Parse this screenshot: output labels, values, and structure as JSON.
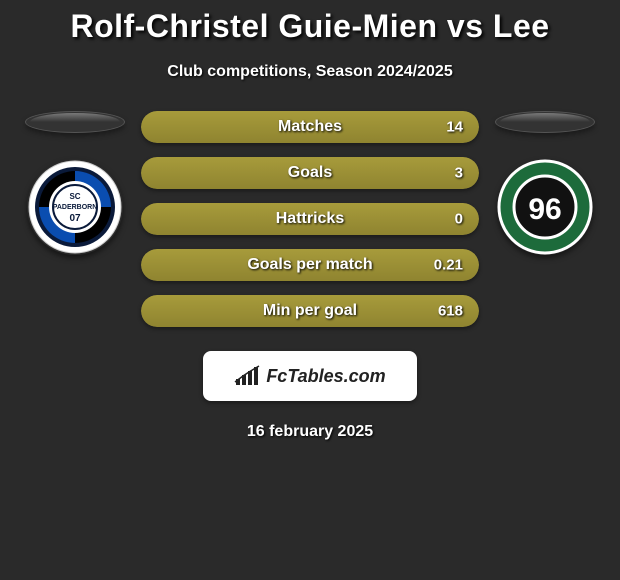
{
  "title": "Rolf-Christel Guie-Mien vs Lee",
  "subtitle": "Club competitions, Season 2024/2025",
  "date": "16 february 2025",
  "brand": "FcTables.com",
  "colors": {
    "olive": "#a79b3b",
    "oliveDark": "#8f8430",
    "barTrack": "#333333",
    "white": "#ffffff"
  },
  "leftBadge": {
    "bg": "#ffffff",
    "line1": "SC",
    "line2": "PADERBORN",
    "line3": "07"
  },
  "rightBadge": {
    "outer": "#1d6b3b",
    "inner": "#111111",
    "text": "96"
  },
  "stats": [
    {
      "label": "Matches",
      "value": "14",
      "fillPct": 100
    },
    {
      "label": "Goals",
      "value": "3",
      "fillPct": 100
    },
    {
      "label": "Hattricks",
      "value": "0",
      "fillPct": 100
    },
    {
      "label": "Goals per match",
      "value": "0.21",
      "fillPct": 100
    },
    {
      "label": "Min per goal",
      "value": "618",
      "fillPct": 100
    }
  ]
}
